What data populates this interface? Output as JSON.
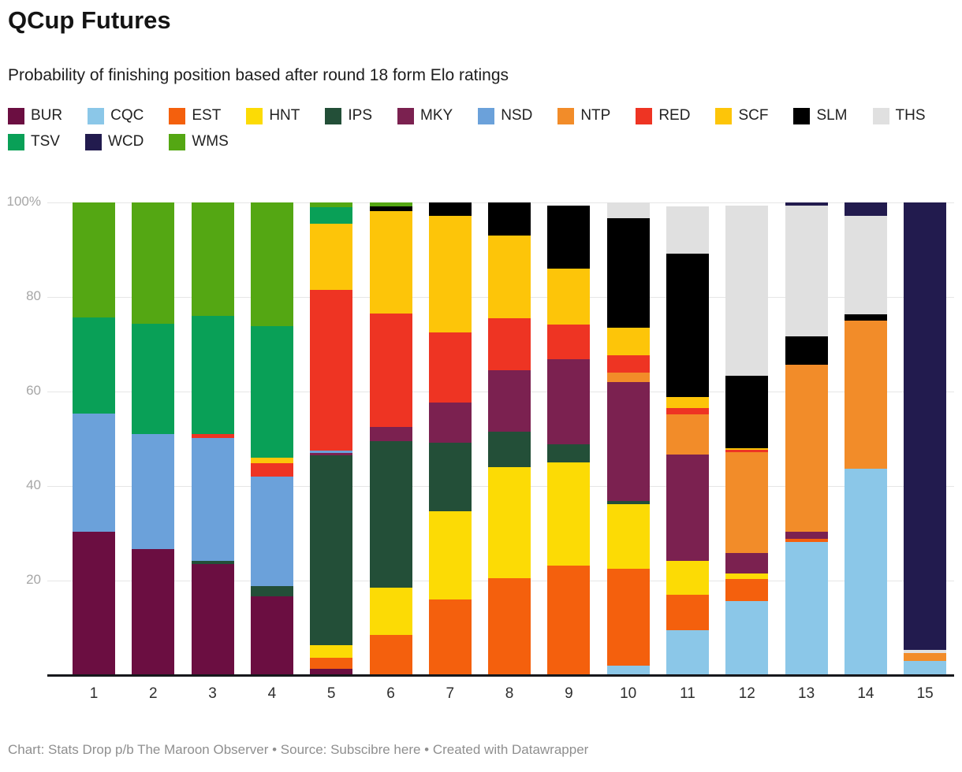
{
  "header": {
    "title": "QCup Futures",
    "subtitle": "Probability of finishing position based after round 18 form Elo ratings"
  },
  "footer": {
    "text": "Chart: Stats Drop p/b The Maroon Observer • Source: Subscibre here • Created with Datawrapper"
  },
  "legend": {
    "items": [
      "BUR",
      "CQC",
      "EST",
      "HNT",
      "IPS",
      "MKY",
      "NSD",
      "NTP",
      "RED",
      "SCF",
      "SLM",
      "THS",
      "TSV",
      "WCD",
      "WMS"
    ]
  },
  "colors": {
    "BUR": "#6b0e41",
    "CQC": "#8bc7e8",
    "EST": "#f4600d",
    "HNT": "#fcdb05",
    "IPS": "#234f38",
    "MKY": "#7b2150",
    "NSD": "#6ba1da",
    "NTP": "#f28c29",
    "RED": "#ee3423",
    "SCF": "#fdc509",
    "SLM": "#000000",
    "THS": "#e0e0e0",
    "TSV": "#09a057",
    "WCD": "#221b4e",
    "WMS": "#54a713",
    "axis_line": "#17181c",
    "gridline": "#e6e6e6",
    "y_tick_text": "#a6a6a6",
    "x_tick_text": "#2e2e2e"
  },
  "chart_data": {
    "type": "bar",
    "stacked": true,
    "unit": "percent",
    "title": "QCup Futures",
    "xlabel": "Finishing position",
    "ylabel": "Probability (%)",
    "ylim": [
      0,
      100
    ],
    "grid": true,
    "legend_position": "top",
    "y_ticks": [
      {
        "value": 100,
        "label": "100%"
      },
      {
        "value": 80,
        "label": "80"
      },
      {
        "value": 60,
        "label": "60"
      },
      {
        "value": 40,
        "label": "40"
      },
      {
        "value": 20,
        "label": "20"
      }
    ],
    "categories": [
      "1",
      "2",
      "3",
      "4",
      "5",
      "6",
      "7",
      "8",
      "9",
      "10",
      "11",
      "12",
      "13",
      "14",
      "15"
    ],
    "stack_order_bottom_to_top": [
      "BUR",
      "CQC",
      "EST",
      "HNT",
      "IPS",
      "MKY",
      "NSD",
      "NTP",
      "RED",
      "SCF",
      "SLM",
      "THS",
      "TSV",
      "WCD",
      "WMS"
    ],
    "series": [
      {
        "name": "BUR",
        "values": [
          30.4,
          26.7,
          23.5,
          16.6,
          1.3,
          0,
          0,
          0,
          0,
          0,
          0,
          0,
          0,
          0,
          0
        ]
      },
      {
        "name": "CQC",
        "values": [
          0,
          0,
          0,
          0,
          0,
          0,
          0,
          0,
          0,
          2.0,
          9.5,
          15.7,
          28.1,
          43.7,
          3.0
        ]
      },
      {
        "name": "EST",
        "values": [
          0,
          0,
          0,
          0,
          2.4,
          8.5,
          16.0,
          20.5,
          23.2,
          20.5,
          7.5,
          4.6,
          0.8,
          0,
          0
        ]
      },
      {
        "name": "HNT",
        "values": [
          0,
          0,
          0,
          0,
          2.6,
          10.0,
          18.7,
          23.5,
          21.8,
          13.7,
          7.2,
          1.2,
          0,
          0,
          0
        ]
      },
      {
        "name": "IPS",
        "values": [
          0,
          0,
          0.6,
          2.2,
          40.2,
          31.0,
          14.4,
          7.5,
          3.8,
          0.6,
          0,
          0,
          0,
          0,
          0
        ]
      },
      {
        "name": "MKY",
        "values": [
          0,
          0,
          0,
          0,
          0.5,
          3.0,
          8.6,
          13.0,
          18.1,
          25.2,
          22.5,
          4.3,
          1.5,
          0,
          0
        ]
      },
      {
        "name": "NSD",
        "values": [
          24.9,
          24.3,
          26.1,
          23.2,
          0.5,
          0,
          0,
          0,
          0,
          0,
          0,
          0,
          0,
          0,
          0
        ]
      },
      {
        "name": "NTP",
        "values": [
          0,
          0,
          0,
          0,
          0,
          0,
          0,
          0,
          0,
          2.0,
          8.5,
          21.4,
          35.2,
          31.3,
          1.6
        ]
      },
      {
        "name": "RED",
        "values": [
          0,
          0,
          0.8,
          2.9,
          34.0,
          24.0,
          14.8,
          11.0,
          7.2,
          3.7,
          1.3,
          0.4,
          0,
          0,
          0
        ]
      },
      {
        "name": "SCF",
        "values": [
          0,
          0,
          0,
          1.1,
          14.0,
          21.7,
          24.6,
          17.5,
          11.9,
          5.8,
          2.3,
          0.4,
          0,
          0,
          0
        ]
      },
      {
        "name": "SLM",
        "values": [
          0,
          0,
          0,
          0,
          0,
          1.0,
          2.9,
          7.0,
          13.3,
          23.1,
          30.4,
          15.3,
          6.0,
          1.3,
          0
        ]
      },
      {
        "name": "THS",
        "values": [
          0,
          0,
          0,
          0,
          0,
          0,
          0,
          0,
          0,
          3.4,
          10.0,
          36.1,
          27.7,
          20.9,
          0.7
        ]
      },
      {
        "name": "TSV",
        "values": [
          20.3,
          23.4,
          25.0,
          27.9,
          3.5,
          0,
          0,
          0,
          0,
          0,
          0,
          0,
          0,
          0,
          0
        ]
      },
      {
        "name": "WCD",
        "values": [
          0,
          0,
          0,
          0,
          0,
          0,
          0,
          0,
          0,
          0,
          0,
          0,
          0.7,
          2.8,
          94.7
        ]
      },
      {
        "name": "WMS",
        "values": [
          24.4,
          25.6,
          24.0,
          26.1,
          1.0,
          0.8,
          0,
          0,
          0,
          0,
          0,
          0,
          0,
          0,
          0
        ]
      }
    ]
  }
}
